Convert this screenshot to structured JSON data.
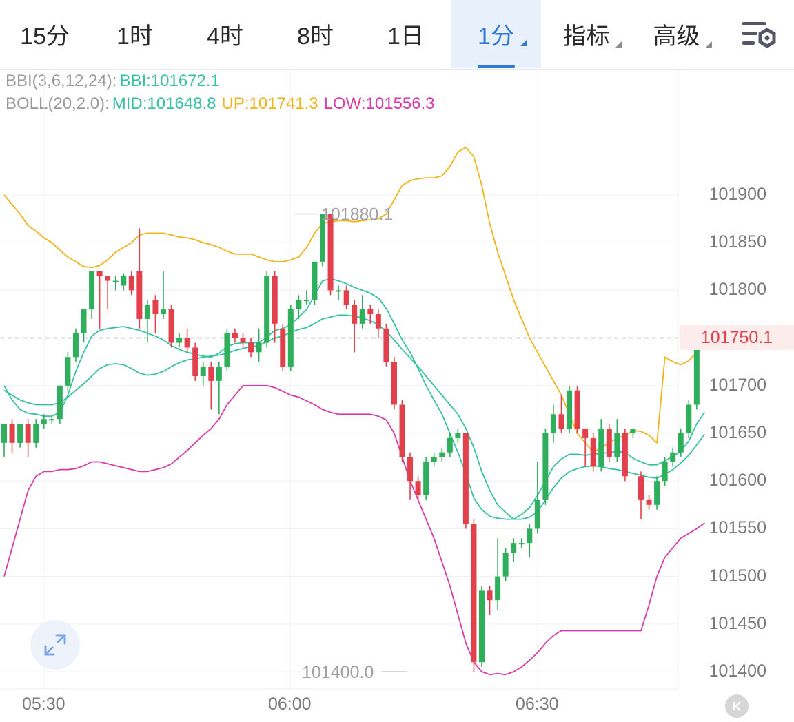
{
  "tabs": [
    {
      "label": "15分",
      "active": false,
      "dropdown": false
    },
    {
      "label": "1时",
      "active": false,
      "dropdown": false
    },
    {
      "label": "4时",
      "active": false,
      "dropdown": false
    },
    {
      "label": "8时",
      "active": false,
      "dropdown": false
    },
    {
      "label": "1日",
      "active": false,
      "dropdown": false
    },
    {
      "label": "1分",
      "active": true,
      "dropdown": true
    },
    {
      "label": "指标",
      "active": false,
      "dropdown": true
    },
    {
      "label": "高级",
      "active": false,
      "dropdown": true
    }
  ],
  "settings_icon": "chart-settings-icon",
  "legend": {
    "bbi_name": "BBI(3,6,12,24):",
    "bbi_value": "BBI:101672.1",
    "boll_name": "BOLL(20,2.0):",
    "boll_mid": "MID:101648.8",
    "boll_up": "UP:101741.3",
    "boll_low": "LOW:101556.3"
  },
  "colors": {
    "up": "#2fae5b",
    "down": "#e2414c",
    "bbi": "#35c2a0",
    "mid": "#35c2a0",
    "upper": "#f0b31a",
    "lower": "#d93aa8",
    "accent": "#2f7bd8"
  },
  "current_price": "101750.1",
  "high_mark": "101880.1",
  "low_mark": "101400.0",
  "chart_data": {
    "type": "candlestick",
    "y_ticks": [
      "101900",
      "101850",
      "101800",
      "101750",
      "101700",
      "101650",
      "101600",
      "101550",
      "101500",
      "101450",
      "101400"
    ],
    "ylim": [
      101380,
      101960
    ],
    "x_ticks": [
      "05:30",
      "06:00",
      "06:30"
    ],
    "candles": [
      [
        101640,
        101660,
        101625,
        101660
      ],
      [
        101660,
        101640,
        101630,
        101665
      ],
      [
        101640,
        101660,
        101635,
        101660
      ],
      [
        101660,
        101640,
        101625,
        101665
      ],
      [
        101640,
        101660,
        101635,
        101665
      ],
      [
        101660,
        101665,
        101655,
        101670
      ],
      [
        101665,
        101665,
        101660,
        101668
      ],
      [
        101665,
        101700,
        101660,
        101700
      ],
      [
        101700,
        101730,
        101695,
        101735
      ],
      [
        101730,
        101755,
        101725,
        101760
      ],
      [
        101755,
        101780,
        101745,
        101780
      ],
      [
        101780,
        101820,
        101770,
        101820
      ],
      [
        101820,
        101815,
        101760,
        101820
      ],
      [
        101815,
        101810,
        101780,
        101815
      ],
      [
        101810,
        101810,
        101800,
        101815
      ],
      [
        101805,
        101815,
        101800,
        101818
      ],
      [
        101815,
        101800,
        101795,
        101820
      ],
      [
        101820,
        101770,
        101760,
        101865
      ],
      [
        101770,
        101785,
        101745,
        101790
      ],
      [
        101790,
        101775,
        101755,
        101795
      ],
      [
        101775,
        101780,
        101770,
        101820
      ],
      [
        101780,
        101745,
        101740,
        101785
      ],
      [
        101745,
        101750,
        101740,
        101755
      ],
      [
        101750,
        101740,
        101735,
        101760
      ],
      [
        101740,
        101710,
        101705,
        101745
      ],
      [
        101710,
        101720,
        101700,
        101725
      ],
      [
        101720,
        101705,
        101675,
        101725
      ],
      [
        101705,
        101720,
        101670,
        101725
      ],
      [
        101720,
        101755,
        101715,
        101760
      ],
      [
        101755,
        101750,
        101745,
        101760
      ],
      [
        101750,
        101745,
        101740,
        101755
      ],
      [
        101745,
        101735,
        101730,
        101750
      ],
      [
        101735,
        101745,
        101725,
        101760
      ],
      [
        101745,
        101815,
        101740,
        101820
      ],
      [
        101815,
        101765,
        101745,
        101820
      ],
      [
        101760,
        101720,
        101715,
        101765
      ],
      [
        101720,
        101780,
        101715,
        101785
      ],
      [
        101780,
        101790,
        101770,
        101795
      ],
      [
        101790,
        101790,
        101785,
        101800
      ],
      [
        101790,
        101830,
        101785,
        101830
      ],
      [
        101830,
        101880,
        101825,
        101880
      ],
      [
        101880,
        101800,
        101795,
        101880
      ],
      [
        101800,
        101800,
        101790,
        101805
      ],
      [
        101800,
        101785,
        101780,
        101805
      ],
      [
        101785,
        101765,
        101735,
        101790
      ],
      [
        101765,
        101780,
        101760,
        101795
      ],
      [
        101780,
        101775,
        101765,
        101785
      ],
      [
        101775,
        101760,
        101750,
        101780
      ],
      [
        101760,
        101725,
        101720,
        101765
      ],
      [
        101725,
        101680,
        101675,
        101730
      ],
      [
        101680,
        101625,
        101620,
        101685
      ],
      [
        101625,
        101600,
        101580,
        101630
      ],
      [
        101600,
        101585,
        101580,
        101605
      ],
      [
        101585,
        101620,
        101580,
        101625
      ],
      [
        101620,
        101625,
        101615,
        101630
      ],
      [
        101625,
        101630,
        101620,
        101635
      ],
      [
        101630,
        101645,
        101625,
        101650
      ],
      [
        101645,
        101650,
        101640,
        101655
      ],
      [
        101650,
        101555,
        101550,
        101650
      ],
      [
        101555,
        101410,
        101400,
        101560
      ],
      [
        101410,
        101485,
        101405,
        101490
      ],
      [
        101485,
        101475,
        101460,
        101490
      ],
      [
        101475,
        101500,
        101465,
        101540
      ],
      [
        101500,
        101525,
        101495,
        101530
      ],
      [
        101525,
        101535,
        101515,
        101540
      ],
      [
        101535,
        101535,
        101530,
        101540
      ],
      [
        101535,
        101550,
        101520,
        101555
      ],
      [
        101550,
        101580,
        101545,
        101620
      ],
      [
        101580,
        101650,
        101575,
        101655
      ],
      [
        101650,
        101670,
        101640,
        101680
      ],
      [
        101670,
        101655,
        101650,
        101690
      ],
      [
        101655,
        101695,
        101650,
        101700
      ],
      [
        101695,
        101655,
        101650,
        101700
      ],
      [
        101655,
        101645,
        101615,
        101650
      ],
      [
        101645,
        101615,
        101610,
        101650
      ],
      [
        101615,
        101655,
        101610,
        101665
      ],
      [
        101655,
        101625,
        101620,
        101660
      ],
      [
        101625,
        101650,
        101620,
        101665
      ],
      [
        101650,
        101605,
        101600,
        101655
      ],
      [
        101650,
        101655,
        101645,
        101655
      ],
      [
        101605,
        101580,
        101560,
        101610
      ],
      [
        101580,
        101575,
        101570,
        101585
      ],
      [
        101575,
        101600,
        101570,
        101605
      ],
      [
        101600,
        101620,
        101595,
        101625
      ],
      [
        101620,
        101630,
        101615,
        101635
      ],
      [
        101630,
        101650,
        101625,
        101655
      ],
      [
        101650,
        101680,
        101645,
        101685
      ],
      [
        101680,
        101750,
        101675,
        101755
      ],
      [
        101750,
        101745,
        101740,
        101755
      ]
    ],
    "series": [
      {
        "name": "BBI",
        "color": "#35c2a0",
        "values": [
          101700,
          101685,
          101675,
          101671,
          101670,
          101668,
          101668,
          101672,
          101690,
          101715,
          101735,
          101752,
          101758,
          101760,
          101761,
          101762,
          101760,
          101758,
          101755,
          101752,
          101748,
          101742,
          101738,
          101735,
          101733,
          101731,
          101730,
          101734,
          101741,
          101744,
          101745,
          101745,
          101745,
          101751,
          101758,
          101760,
          101764,
          101772,
          101780,
          101795,
          101810,
          101812,
          101810,
          101807,
          101803,
          101800,
          101797,
          101792,
          101781,
          101765,
          101748,
          101735,
          101718,
          101700,
          101685,
          101670,
          101650,
          101630,
          101608,
          101582,
          101570,
          101563,
          101561,
          101560,
          101560,
          101565,
          101572,
          101585,
          101600,
          101615,
          101623,
          101628,
          101628,
          101627,
          101628,
          101629,
          101630,
          101631,
          101630,
          101624,
          101620,
          101617,
          101617,
          101621,
          101626,
          101631,
          101642,
          101660,
          101672
        ]
      },
      {
        "name": "MID",
        "color": "#35c2a0",
        "values": [
          101695,
          101690,
          101685,
          101682,
          101680,
          101680,
          101680,
          101682,
          101688,
          101695,
          101702,
          101710,
          101718,
          101722,
          101723,
          101722,
          101718,
          101713,
          101711,
          101712,
          101715,
          101720,
          101724,
          101727,
          101728,
          101730,
          101731,
          101732,
          101734,
          101737,
          101739,
          101741,
          101742,
          101746,
          101750,
          101752,
          101756,
          101759,
          101761,
          101765,
          101770,
          101772,
          101774,
          101774,
          101773,
          101771,
          101768,
          101764,
          101757,
          101748,
          101738,
          101729,
          101720,
          101710,
          101700,
          101690,
          101680,
          101670,
          101655,
          101635,
          101610,
          101590,
          101575,
          101567,
          101560,
          101560,
          101562,
          101568,
          101580,
          101593,
          101603,
          101610,
          101613,
          101615,
          101616,
          101615,
          101613,
          101612,
          101610,
          101608,
          101606,
          101604,
          101603,
          101607,
          101612,
          101619,
          101627,
          101638,
          101649
        ]
      },
      {
        "name": "UP",
        "color": "#f0b31a",
        "values": [
          101900,
          101890,
          101880,
          101868,
          101862,
          101855,
          101850,
          101842,
          101835,
          101830,
          101825,
          101824,
          101826,
          101832,
          101840,
          101845,
          101850,
          101858,
          101860,
          101860,
          101860,
          101858,
          101856,
          101855,
          101853,
          101850,
          101848,
          101845,
          101841,
          101838,
          101838,
          101838,
          101835,
          101832,
          101830,
          101830,
          101832,
          101835,
          101845,
          101860,
          101870,
          101872,
          101873,
          101873,
          101872,
          101873,
          101874,
          101875,
          101880,
          101895,
          101910,
          101915,
          101917,
          101918,
          101918,
          101920,
          101930,
          101945,
          101950,
          101940,
          101910,
          101870,
          101840,
          101815,
          101790,
          101770,
          101750,
          101735,
          101720,
          101705,
          101690,
          101670,
          101650,
          101640,
          101630,
          101635,
          101640,
          101645,
          101648,
          101653,
          101652,
          101648,
          101640,
          101730,
          101725,
          101722,
          101726,
          101735,
          101741
        ]
      },
      {
        "name": "LOW",
        "color": "#d93aa8",
        "values": [
          101500,
          101530,
          101560,
          101590,
          101605,
          101610,
          101610,
          101612,
          101612,
          101613,
          101616,
          101620,
          101620,
          101618,
          101616,
          101614,
          101612,
          101610,
          101610,
          101612,
          101614,
          101618,
          101625,
          101632,
          101640,
          101648,
          101655,
          101665,
          101680,
          101690,
          101700,
          101700,
          101700,
          101700,
          101698,
          101694,
          101690,
          101688,
          101684,
          101680,
          101675,
          101672,
          101670,
          101670,
          101670,
          101670,
          101670,
          101668,
          101664,
          101650,
          101625,
          101600,
          101580,
          101560,
          101540,
          101515,
          101490,
          101460,
          101430,
          101410,
          101400,
          101397,
          101398,
          101397,
          101400,
          101405,
          101412,
          101420,
          101430,
          101438,
          101443,
          101443,
          101443,
          101443,
          101443,
          101443,
          101443,
          101443,
          101443,
          101443,
          101443,
          101470,
          101500,
          101520,
          101530,
          101540,
          101545,
          101550,
          101556
        ]
      }
    ]
  }
}
